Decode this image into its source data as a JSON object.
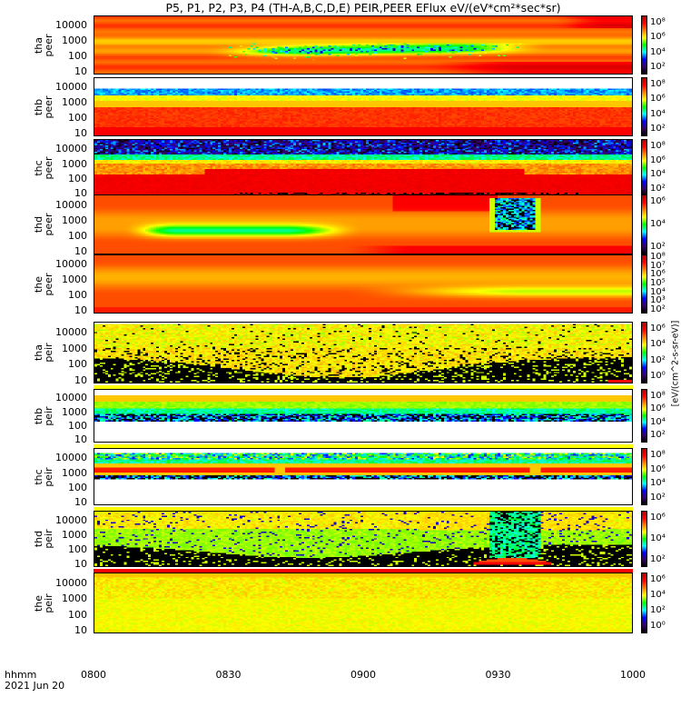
{
  "title": "P5, P1, P2, P3, P4 (TH-A,B,C,D,E) PEIR,PEER EFlux eV/(eV*cm²*sec*sr)",
  "chart_data": {
    "type": "heatmap",
    "x_axis": {
      "label_line1": "hhmm",
      "label_line2": "2021 Jun 20",
      "ticks": [
        "0800",
        "0830",
        "0900",
        "0930",
        "1000"
      ],
      "range": [
        "0800",
        "1000"
      ]
    },
    "colorbar_units": "[eV/(cm^2-s-sr-eV)]",
    "colormap": [
      "#000000",
      "#3a0070",
      "#0000ff",
      "#00ffff",
      "#00ff00",
      "#ffff00",
      "#ff8000",
      "#ff0000",
      "#b00000"
    ],
    "panels": [
      {
        "label": "tha peer",
        "yticks": [
          "10000",
          "1000",
          "100",
          "10"
        ],
        "cbar_ticks": [
          "8",
          "6",
          "4",
          "2"
        ]
      },
      {
        "label": "thb peer",
        "yticks": [
          "10000",
          "1000",
          "100",
          "10"
        ],
        "cbar_ticks": [
          "8",
          "6",
          "4",
          "2"
        ]
      },
      {
        "label": "thc peer",
        "yticks": [
          "10000",
          "1000",
          "100",
          "10"
        ],
        "cbar_ticks": [
          "8",
          "6",
          "4",
          "2"
        ]
      },
      {
        "label": "thd peer",
        "yticks": [
          "10000",
          "1000",
          "100",
          "10"
        ],
        "cbar_ticks": [
          "6",
          "4",
          "2"
        ]
      },
      {
        "label": "the peer",
        "yticks": [
          "10000",
          "1000",
          "100",
          "10"
        ],
        "cbar_ticks": [
          "8",
          "7",
          "6",
          "5",
          "4",
          "3",
          "2"
        ]
      },
      {
        "label": "tha peir",
        "yticks": [
          "10000",
          "1000",
          "100",
          "10"
        ],
        "cbar_ticks": [
          "6",
          "4",
          "2",
          "0"
        ]
      },
      {
        "label": "thb peir",
        "yticks": [
          "10000",
          "1000",
          "100",
          "10"
        ],
        "cbar_ticks": [
          "8",
          "6",
          "4",
          "2"
        ]
      },
      {
        "label": "thc peir",
        "yticks": [
          "10000",
          "1000",
          "100",
          "10"
        ],
        "cbar_ticks": [
          "8",
          "6",
          "4",
          "2"
        ]
      },
      {
        "label": "thd peir",
        "yticks": [
          "10000",
          "1000",
          "100",
          "10"
        ],
        "cbar_ticks": [
          "6",
          "4",
          "2"
        ]
      },
      {
        "label": "the peir",
        "yticks": [
          "10000",
          "1000",
          "100",
          "10"
        ],
        "cbar_ticks": [
          "6",
          "4",
          "2",
          "0"
        ]
      }
    ]
  }
}
